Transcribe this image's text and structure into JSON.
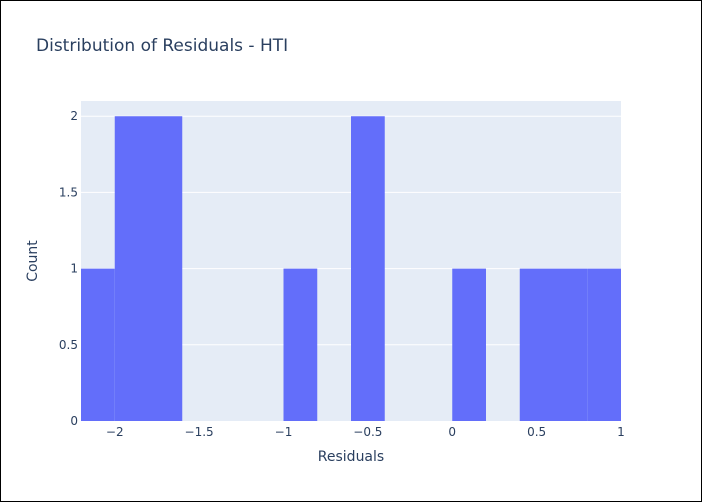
{
  "chart_data": {
    "type": "bar",
    "title": "Distribution of Residuals - HTI",
    "xlabel": "Residuals",
    "ylabel": "Count",
    "xlim": [
      -2.2,
      1.0
    ],
    "ylim": [
      0,
      2.1
    ],
    "x_ticks": [
      -2,
      -1.5,
      -1,
      -0.5,
      0,
      0.5,
      1
    ],
    "x_tick_labels": [
      "−2",
      "−1.5",
      "−1",
      "−0.5",
      "0",
      "0.5",
      "1"
    ],
    "y_ticks": [
      0,
      0.5,
      1,
      1.5,
      2
    ],
    "y_tick_labels": [
      "0",
      "0.5",
      "1",
      "1.5",
      "2"
    ],
    "bin_width": 0.2,
    "bins": [
      {
        "start": -2.2,
        "end": -2.0,
        "count": 1
      },
      {
        "start": -2.0,
        "end": -1.8,
        "count": 2
      },
      {
        "start": -1.8,
        "end": -1.6,
        "count": 2
      },
      {
        "start": -1.0,
        "end": -0.8,
        "count": 1
      },
      {
        "start": -0.6,
        "end": -0.4,
        "count": 2
      },
      {
        "start": 0.0,
        "end": 0.2,
        "count": 1
      },
      {
        "start": 0.4,
        "end": 0.6,
        "count": 1
      },
      {
        "start": 0.6,
        "end": 0.8,
        "count": 1
      },
      {
        "start": 0.8,
        "end": 1.0,
        "count": 1
      }
    ],
    "grid": true,
    "colors": {
      "bar": "#636efa",
      "plot_bg": "#e5ecf6",
      "grid": "#ffffff",
      "text": "#2a3f5f"
    }
  }
}
